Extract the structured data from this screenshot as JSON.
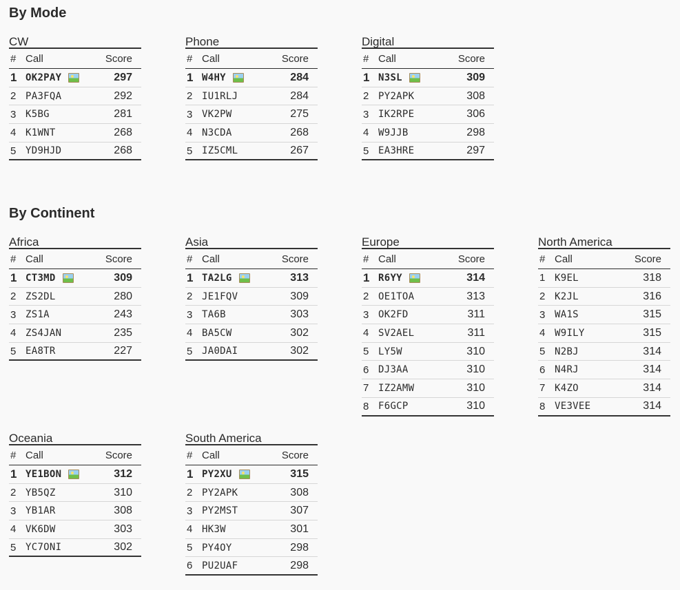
{
  "sections": [
    {
      "title": "By Mode",
      "boards": [
        {
          "title": "CW",
          "rows": [
            {
              "rank": "1",
              "call": "OK2PAY",
              "score": "297",
              "photo": true
            },
            {
              "rank": "2",
              "call": "PA3FQA",
              "score": "292"
            },
            {
              "rank": "3",
              "call": "K5BG",
              "score": "281"
            },
            {
              "rank": "4",
              "call": "K1WNT",
              "score": "268"
            },
            {
              "rank": "5",
              "call": "YD9HJD",
              "score": "268"
            }
          ]
        },
        {
          "title": "Phone",
          "rows": [
            {
              "rank": "1",
              "call": "W4HY",
              "score": "284",
              "photo": true
            },
            {
              "rank": "2",
              "call": "IU1RLJ",
              "score": "284"
            },
            {
              "rank": "3",
              "call": "VK2PW",
              "score": "275"
            },
            {
              "rank": "4",
              "call": "N3CDA",
              "score": "268"
            },
            {
              "rank": "5",
              "call": "IZ5CML",
              "score": "267"
            }
          ]
        },
        {
          "title": "Digital",
          "rows": [
            {
              "rank": "1",
              "call": "N3SL",
              "score": "309",
              "photo": true
            },
            {
              "rank": "2",
              "call": "PY2APK",
              "score": "308"
            },
            {
              "rank": "3",
              "call": "IK2RPE",
              "score": "306"
            },
            {
              "rank": "4",
              "call": "W9JJB",
              "score": "298"
            },
            {
              "rank": "5",
              "call": "EA3HRE",
              "score": "297"
            }
          ]
        }
      ]
    },
    {
      "title": "By Continent",
      "boards": [
        {
          "title": "Africa",
          "rows": [
            {
              "rank": "1",
              "call": "CT3MD",
              "score": "309",
              "photo": true
            },
            {
              "rank": "2",
              "call": "ZS2DL",
              "score": "280"
            },
            {
              "rank": "3",
              "call": "ZS1A",
              "score": "243"
            },
            {
              "rank": "4",
              "call": "ZS4JAN",
              "score": "235"
            },
            {
              "rank": "5",
              "call": "EA8TR",
              "score": "227"
            }
          ]
        },
        {
          "title": "Asia",
          "rows": [
            {
              "rank": "1",
              "call": "TA2LG",
              "score": "313",
              "photo": true
            },
            {
              "rank": "2",
              "call": "JE1FQV",
              "score": "309"
            },
            {
              "rank": "3",
              "call": "TA6B",
              "score": "303"
            },
            {
              "rank": "4",
              "call": "BA5CW",
              "score": "302"
            },
            {
              "rank": "5",
              "call": "JA0DAI",
              "score": "302"
            }
          ]
        },
        {
          "title": "Europe",
          "rows": [
            {
              "rank": "1",
              "call": "R6YY",
              "score": "314",
              "photo": true
            },
            {
              "rank": "2",
              "call": "OE1TOA",
              "score": "313"
            },
            {
              "rank": "3",
              "call": "OK2FD",
              "score": "311"
            },
            {
              "rank": "4",
              "call": "SV2AEL",
              "score": "311"
            },
            {
              "rank": "5",
              "call": "LY5W",
              "score": "310"
            },
            {
              "rank": "6",
              "call": "DJ3AA",
              "score": "310"
            },
            {
              "rank": "7",
              "call": "IZ2AMW",
              "score": "310"
            },
            {
              "rank": "8",
              "call": "F6GCP",
              "score": "310"
            }
          ]
        },
        {
          "title": "North America",
          "rows": [
            {
              "rank": "1",
              "call": "K9EL",
              "score": "318"
            },
            {
              "rank": "2",
              "call": "K2JL",
              "score": "316"
            },
            {
              "rank": "3",
              "call": "WA1S",
              "score": "315"
            },
            {
              "rank": "4",
              "call": "W9ILY",
              "score": "315"
            },
            {
              "rank": "5",
              "call": "N2BJ",
              "score": "314"
            },
            {
              "rank": "6",
              "call": "N4RJ",
              "score": "314"
            },
            {
              "rank": "7",
              "call": "K4ZO",
              "score": "314"
            },
            {
              "rank": "8",
              "call": "VE3VEE",
              "score": "314"
            }
          ]
        },
        {
          "title": "Oceania",
          "rows": [
            {
              "rank": "1",
              "call": "YE1BON",
              "score": "312",
              "photo": true
            },
            {
              "rank": "2",
              "call": "YB5QZ",
              "score": "310"
            },
            {
              "rank": "3",
              "call": "YB1AR",
              "score": "308"
            },
            {
              "rank": "4",
              "call": "VK6DW",
              "score": "303"
            },
            {
              "rank": "5",
              "call": "YC7ONI",
              "score": "302"
            }
          ]
        },
        {
          "title": "South America",
          "rows": [
            {
              "rank": "1",
              "call": "PY2XU",
              "score": "315",
              "photo": true
            },
            {
              "rank": "2",
              "call": "PY2APK",
              "score": "308"
            },
            {
              "rank": "3",
              "call": "PY2MST",
              "score": "307"
            },
            {
              "rank": "4",
              "call": "HK3W",
              "score": "301"
            },
            {
              "rank": "5",
              "call": "PY4OY",
              "score": "298"
            },
            {
              "rank": "6",
              "call": "PU2UAF",
              "score": "298"
            }
          ]
        }
      ]
    }
  ],
  "table_headers": {
    "rank": "#",
    "call": "Call",
    "score": "Score"
  },
  "icons": {
    "photo": "photo-icon"
  }
}
